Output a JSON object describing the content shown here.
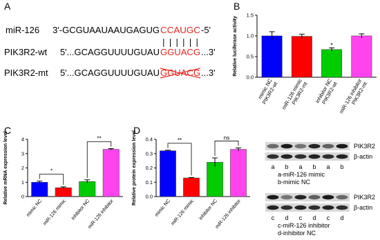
{
  "panel_a": {
    "label": "A",
    "rows": [
      {
        "name": "miR-126",
        "left": "3'-GCGUAAUAAUGAGUG",
        "site": "CCAUGC",
        "right": "-5'"
      },
      {
        "name": "PIK3R2-wt",
        "left": "5'...GCAGGUUUUGUAU",
        "site": "GGUACG",
        "right": "...3'"
      },
      {
        "name": "PIK3R2-mt",
        "left": "5'...GCAGGUUUUGUAU",
        "site": "GGUACG",
        "right": "...3'"
      }
    ]
  },
  "chart_data": [
    {
      "type": "bar",
      "label": "B",
      "ylabel": "Relative luciferase activity",
      "categories": [
        [
          "mimic NC",
          "PIK3R2-wt"
        ],
        [
          "miR-126 mimic",
          "PIK3R2-mt"
        ],
        [
          "inhibitor NC",
          "PIK3R2-wt"
        ],
        [
          "miR-126 inhibitor",
          "PIK3R2-mt"
        ]
      ],
      "values": [
        1.0,
        0.99,
        0.67,
        1.0
      ],
      "errors": [
        0.1,
        0.05,
        0.04,
        0.05
      ],
      "colors": [
        "#0000ff",
        "#ff0000",
        "#00cc00",
        "#ff44ee"
      ],
      "ylim": [
        0,
        1.5
      ],
      "yticks": [
        {
          "value": 0,
          "label": "0.0"
        },
        0.5,
        {
          "value": 1,
          "label": "1.0"
        },
        1.5
      ],
      "annotations": [
        "*"
      ]
    },
    {
      "type": "bar",
      "label": "C",
      "ylabel": "Relative mRNA expression level",
      "categories": [
        "mimic NC",
        "miR-126 mimic",
        "inhibitor NC",
        "miR-126 inhibitor"
      ],
      "values": [
        1.0,
        0.62,
        1.05,
        3.3
      ],
      "errors": [
        0.08,
        0.06,
        0.12,
        0.05
      ],
      "colors": [
        "#0000ff",
        "#ff0000",
        "#00cc00",
        "#ff44ee"
      ],
      "ylim": [
        0,
        4
      ],
      "yticks": [
        0,
        1,
        2,
        3,
        4
      ],
      "annotations": [
        "*",
        "**"
      ]
    },
    {
      "type": "bar",
      "label": "D",
      "ylabel": "Relative protein expression level",
      "categories": [
        "mimic NC",
        "miR-126 mimic",
        "inhibitor NC",
        "miR-126 inhibitor"
      ],
      "values": [
        0.32,
        0.13,
        0.24,
        0.33
      ],
      "errors": [
        0.004,
        0.003,
        0.03,
        0.01
      ],
      "colors": [
        "#0000ff",
        "#ff0000",
        "#00cc00",
        "#ff44ee"
      ],
      "ylim": [
        0,
        0.4
      ],
      "yticks": [
        {
          "value": 0,
          "label": "0.0"
        },
        0.1,
        0.2,
        0.3,
        0.4
      ],
      "annotations": [
        "**",
        "ns"
      ]
    }
  ],
  "blots": [
    {
      "lanes": [
        "a",
        "b",
        "a",
        "b",
        "a",
        "b"
      ],
      "bands": [
        "PIK3R2",
        "β-actin"
      ],
      "legend": [
        "a-miR-126 mimic",
        "b-mimic NC"
      ]
    },
    {
      "lanes": [
        "c",
        "d",
        "c",
        "d",
        "c",
        "d"
      ],
      "bands": [
        "PIK3R2",
        "β-actin"
      ],
      "legend": [
        "c-miR-126 inhibitor",
        "d-inhibitor NC"
      ]
    }
  ]
}
